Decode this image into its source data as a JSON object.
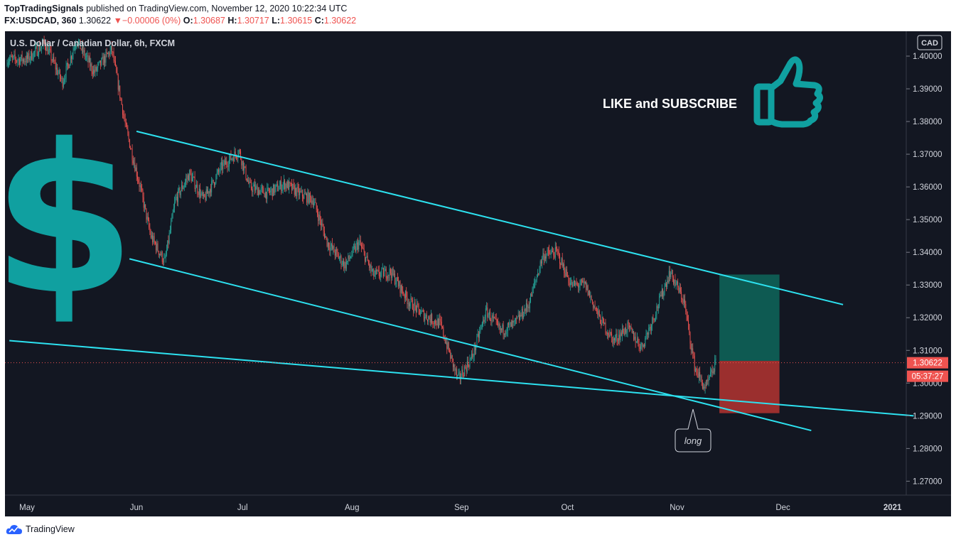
{
  "header": {
    "publisher": "TopTradingSignals",
    "published_text": "published on TradingView.com, November 12, 2020 10:22:34 UTC",
    "symbol": "FX:USDCAD, 360",
    "last": "1.30622",
    "change": "−0.00006 (0%)",
    "o_label": "O:",
    "o": "1.30687",
    "h_label": "H:",
    "h": "1.30717",
    "l_label": "L:",
    "l": "1.30615",
    "c_label": "C:",
    "c": "1.30622"
  },
  "footer": {
    "brand": "TradingView"
  },
  "chart_data": {
    "type": "candlestick",
    "title": "U.S. Dollar / Canadian Dollar, 6h, FXCM",
    "currency": "CAD",
    "y_ticks": [
      "1.40000",
      "1.39000",
      "1.38000",
      "1.37000",
      "1.36000",
      "1.35000",
      "1.34000",
      "1.33000",
      "1.32000",
      "1.31000",
      "1.30000",
      "1.29000",
      "1.28000",
      "1.27000"
    ],
    "x_ticks": [
      "May",
      "Jun",
      "Jul",
      "Aug",
      "Sep",
      "Oct",
      "Nov",
      "Dec",
      "2021"
    ],
    "last_price_label": "1.30622",
    "countdown_label": "05:37:27",
    "annotation_text": "LIKE and SUBSCRIBE",
    "callout_text": "long",
    "colors": {
      "background": "#131722",
      "up": "#26a69a",
      "down": "#ef5350",
      "trendline": "#2de2f0",
      "accent_icon": "#10a0a0",
      "target_zone": "#0e5a52",
      "stop_zone": "#9b2f2e"
    },
    "price_path": [
      [
        "2020-05-01",
        1.399
      ],
      [
        "2020-05-06",
        1.404
      ],
      [
        "2020-05-11",
        1.392
      ],
      [
        "2020-05-15",
        1.405
      ],
      [
        "2020-05-20",
        1.395
      ],
      [
        "2020-05-25",
        1.402
      ],
      [
        "2020-05-29",
        1.378
      ],
      [
        "2020-06-02",
        1.36
      ],
      [
        "2020-06-05",
        1.345
      ],
      [
        "2020-06-09",
        1.337
      ],
      [
        "2020-06-12",
        1.356
      ],
      [
        "2020-06-16",
        1.364
      ],
      [
        "2020-06-20",
        1.356
      ],
      [
        "2020-06-25",
        1.366
      ],
      [
        "2020-06-30",
        1.371
      ],
      [
        "2020-07-03",
        1.36
      ],
      [
        "2020-07-08",
        1.358
      ],
      [
        "2020-07-13",
        1.361
      ],
      [
        "2020-07-17",
        1.358
      ],
      [
        "2020-07-21",
        1.356
      ],
      [
        "2020-07-25",
        1.343
      ],
      [
        "2020-07-30",
        1.336
      ],
      [
        "2020-08-03",
        1.343
      ],
      [
        "2020-08-07",
        1.333
      ],
      [
        "2020-08-12",
        1.334
      ],
      [
        "2020-08-17",
        1.325
      ],
      [
        "2020-08-21",
        1.321
      ],
      [
        "2020-08-26",
        1.318
      ],
      [
        "2020-08-31",
        1.301
      ],
      [
        "2020-09-04",
        1.308
      ],
      [
        "2020-09-08",
        1.322
      ],
      [
        "2020-09-12",
        1.316
      ],
      [
        "2020-09-16",
        1.318
      ],
      [
        "2020-09-20",
        1.324
      ],
      [
        "2020-09-24",
        1.339
      ],
      [
        "2020-09-28",
        1.34
      ],
      [
        "2020-10-02",
        1.33
      ],
      [
        "2020-10-06",
        1.33
      ],
      [
        "2020-10-10",
        1.32
      ],
      [
        "2020-10-14",
        1.313
      ],
      [
        "2020-10-18",
        1.317
      ],
      [
        "2020-10-22",
        1.311
      ],
      [
        "2020-10-26",
        1.322
      ],
      [
        "2020-10-30",
        1.334
      ],
      [
        "2020-11-03",
        1.325
      ],
      [
        "2020-11-06",
        1.305
      ],
      [
        "2020-11-09",
        1.298
      ],
      [
        "2020-11-12",
        1.3062
      ]
    ],
    "trendlines": [
      {
        "from": [
          "2020-06-01",
          1.377
        ],
        "to": [
          "2020-12-18",
          1.324
        ]
      },
      {
        "from": [
          "2020-05-30",
          1.338
        ],
        "to": [
          "2020-12-09",
          1.2855
        ]
      },
      {
        "from": [
          "2020-04-26",
          1.313
        ],
        "to": [
          "2021-01-07",
          1.29
        ]
      }
    ],
    "target_zone": {
      "from": "2020-11-13",
      "to": "2020-11-30",
      "y_top": 1.3332,
      "y_bottom": 1.3068
    },
    "stop_zone": {
      "from": "2020-11-13",
      "to": "2020-11-30",
      "y_top": 1.3068,
      "y_bottom": 1.2908
    }
  }
}
